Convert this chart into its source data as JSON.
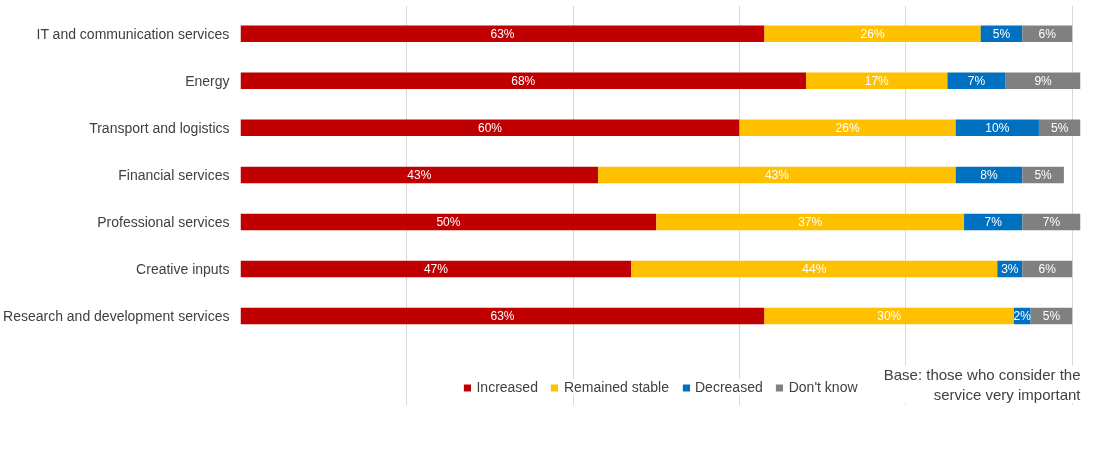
{
  "chart_data": {
    "type": "bar",
    "orientation": "horizontal",
    "stacked": true,
    "categories": [
      "IT and communication services",
      "Energy",
      "Transport and logistics",
      "Financial services",
      "Professional services",
      "Creative inputs",
      "Research and development services"
    ],
    "series": [
      {
        "name": "Increased",
        "color": "#c00000",
        "values": [
          63,
          68,
          60,
          43,
          50,
          47,
          63
        ],
        "value_labels": [
          "63%",
          "68%",
          "60%",
          "43%",
          "50%",
          "47%",
          "63%"
        ]
      },
      {
        "name": "Remained stable",
        "color": "#ffc000",
        "values": [
          26,
          17,
          26,
          43,
          37,
          44,
          30
        ],
        "value_labels": [
          "26%",
          "17%",
          "26%",
          "43%",
          "37%",
          "44%",
          "30%"
        ]
      },
      {
        "name": "Decreased",
        "color": "#0070c0",
        "values": [
          5,
          7,
          10,
          8,
          7,
          3,
          2
        ],
        "value_labels": [
          "5%",
          "7%",
          "10%",
          "8%",
          "7%",
          "3%",
          "2%"
        ]
      },
      {
        "name": "Don't know",
        "color": "#808080",
        "values": [
          6,
          9,
          5,
          5,
          7,
          6,
          5
        ],
        "value_labels": [
          "6%",
          "9%",
          "5%",
          "5%",
          "7%",
          "6%",
          "5%"
        ]
      }
    ],
    "tick_labels": "y",
    "grid": "x",
    "legend": "bottom",
    "annotations": [
      "Base: those who consider the service very important"
    ]
  }
}
